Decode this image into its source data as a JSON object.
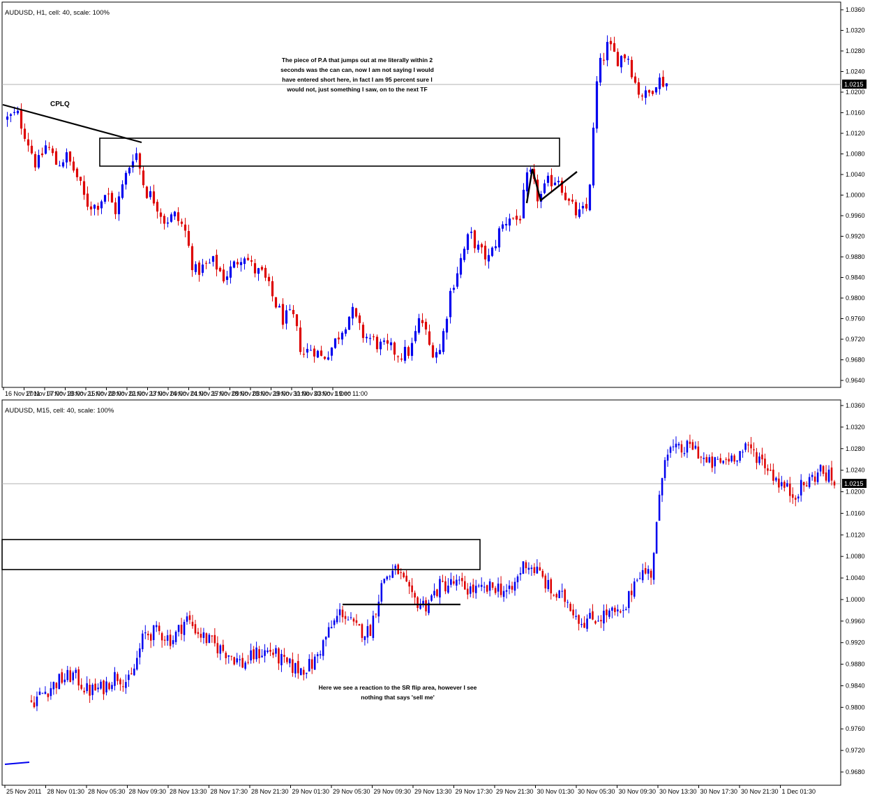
{
  "chart_data": [
    {
      "type": "candlestick",
      "title": "AUDUSD, H1, cell: 40, scale: 100%",
      "symbol": "AUDUSD",
      "timeframe": "H1",
      "ylim": [
        0.964,
        1.036
      ],
      "yticks": [
        "1.0360",
        "1.0320",
        "1.0280",
        "1.0240",
        "1.0200",
        "1.0160",
        "1.0120",
        "1.0080",
        "1.0040",
        "1.0000",
        "0.9960",
        "0.9920",
        "0.9880",
        "0.9840",
        "0.9800",
        "0.9760",
        "0.9720",
        "0.9680",
        "0.9640"
      ],
      "xticks": [
        "16 Nov 2011",
        "17 Nov 07:00",
        "17 Nov 23:00",
        "18 Nov 15:00",
        "21 Nov 09:00",
        "22 Nov 01:00",
        "22 Nov 17:00",
        "23 Nov 09:00",
        "24 Nov 01:00",
        "24 Nov 17:00",
        "25 Nov 09:00",
        "28 Nov 03:00",
        "28 Nov 19:00",
        "29 Nov 11:00",
        "30 Nov 03:00",
        "30 Nov 19:00",
        "1 Dec 11:00"
      ],
      "current_price": "1.0215",
      "colors": {
        "up": "#0000ee",
        "down": "#dd0000",
        "price_line": "#b0b0b0"
      },
      "path": [
        1.0148,
        1.0158,
        1.011,
        1.0055,
        1.01,
        1.006,
        1.0075,
        1.004,
        0.9985,
        0.9978,
        1.0005,
        0.997,
        1.0035,
        1.009,
        1.001,
        0.999,
        0.995,
        0.996,
        0.9935,
        0.985,
        0.986,
        0.987,
        0.984,
        0.9862,
        0.989,
        0.9855,
        0.9845,
        0.98,
        0.976,
        0.9765,
        0.969,
        0.9705,
        0.9683,
        0.9705,
        0.974,
        0.9775,
        0.973,
        0.972,
        0.9705,
        0.97,
        0.969,
        0.9698,
        0.9765,
        0.97,
        0.9698,
        0.981,
        0.987,
        0.9925,
        0.989,
        0.9875,
        0.993,
        0.996,
        0.995,
        1.0048,
        0.999,
        1.0025,
        1.0035,
        0.9985,
        0.996,
        0.9975,
        1.024,
        1.029,
        1.0265,
        1.0275,
        1.0205,
        1.019,
        1.0225,
        1.0218
      ],
      "zones": [
        {
          "price_top": 1.011,
          "price_bottom": 1.0055,
          "from": 0.115,
          "to": 0.667
        }
      ],
      "annotations": [
        {
          "text": "CPLQ"
        },
        {
          "lines": [
            "The piece of P.A that jumps out at me literally within 2",
            "seconds was the can can, now I am not saying I would",
            "have entered short here, in fact I am 95 percent sure I",
            "would not, just something I saw, on to the next TF"
          ]
        }
      ]
    },
    {
      "type": "candlestick",
      "title": "AUDUSD, M15, cell: 40, scale: 100%",
      "symbol": "AUDUSD",
      "timeframe": "M15",
      "ylim": [
        0.964,
        1.036
      ],
      "yticks": [
        "1.0360",
        "1.0320",
        "1.0280",
        "1.0240",
        "1.0200",
        "1.0160",
        "1.0120",
        "1.0080",
        "1.0040",
        "1.0000",
        "0.9960",
        "0.9920",
        "0.9880",
        "0.9840",
        "0.9800",
        "0.9760",
        "0.9720",
        "0.9680"
      ],
      "xticks": [
        "25 Nov 2011",
        "28 Nov 01:30",
        "28 Nov 05:30",
        "28 Nov 09:30",
        "28 Nov 13:30",
        "28 Nov 17:30",
        "28 Nov 21:30",
        "29 Nov 01:30",
        "29 Nov 05:30",
        "29 Nov 09:30",
        "29 Nov 13:30",
        "29 Nov 17:30",
        "29 Nov 21:30",
        "30 Nov 01:30",
        "30 Nov 05:30",
        "30 Nov 09:30",
        "30 Nov 13:30",
        "30 Nov 17:30",
        "30 Nov 21:30",
        "1 Dec 01:30"
      ],
      "current_price": "1.0215",
      "colors": {
        "up": "#0000ee",
        "down": "#dd0000",
        "price_line": "#b0b0b0"
      },
      "path": [
        0.981,
        0.983,
        0.985,
        0.986,
        0.983,
        0.9835,
        0.986,
        0.9845,
        0.9935,
        0.994,
        0.9925,
        0.9965,
        0.9935,
        0.9915,
        0.99,
        0.988,
        0.99,
        0.9905,
        0.988,
        0.987,
        0.988,
        0.9935,
        0.998,
        0.9945,
        0.994,
        1.004,
        1.0055,
        1.0,
        0.999,
        1.0025,
        1.003,
        1.002,
        1.0015,
        1.0025,
        1.001,
        1.007,
        1.005,
        1.001,
        1.0,
        0.996,
        0.9965,
        0.9975,
        0.997,
        1.005,
        1.005,
        1.028,
        1.0275,
        1.0285,
        1.025,
        1.0255,
        1.027,
        1.028,
        1.0255,
        1.022,
        1.0195,
        1.0215,
        1.024,
        1.0218
      ],
      "zones": [
        {
          "price_top": 1.011,
          "price_bottom": 1.0055,
          "from": 0.0,
          "to": 0.568
        }
      ],
      "annotations": [
        {
          "lines": [
            "Here we see a reaction to the SR flip area, however I see",
            "nothing that says 'sell me'"
          ]
        }
      ]
    }
  ]
}
